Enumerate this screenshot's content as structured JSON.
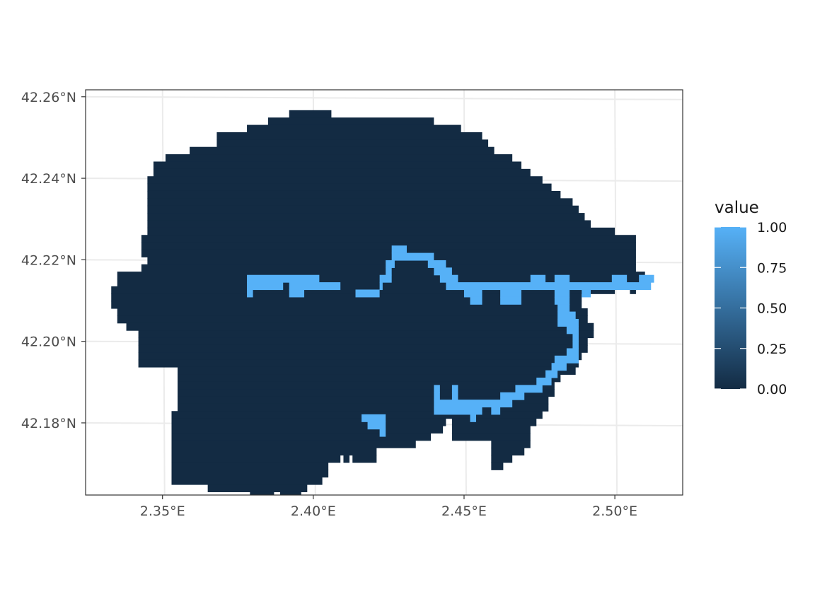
{
  "chart_data": {
    "type": "heatmap",
    "subtype": "raster-map",
    "x_ticks": [
      "2.35°E",
      "2.40°E",
      "2.45°E",
      "2.50°E"
    ],
    "y_ticks": [
      "42.26°N",
      "42.24°N",
      "42.22°N",
      "42.20°N",
      "42.18°N"
    ],
    "x_tick_values": [
      2.35,
      2.4,
      2.45,
      2.5
    ],
    "y_tick_values": [
      42.26,
      42.24,
      42.22,
      42.2,
      42.18
    ],
    "xlim": [
      2.3245,
      2.5225
    ],
    "ylim": [
      42.1623,
      42.2617
    ],
    "grid": true,
    "legend": {
      "title": "value",
      "position": "right",
      "scale": "continuous",
      "ticks": [
        "1.00",
        "0.75",
        "0.50",
        "0.25",
        "0.00"
      ],
      "tick_values": [
        1.0,
        0.75,
        0.5,
        0.25,
        0.0
      ],
      "low_color": "#132B43",
      "high_color": "#56B1F7"
    },
    "background_value": 0.0,
    "foreground_value": 1.0,
    "cell_size_deg": [
      0.0024,
      0.0018
    ],
    "area_rows": [
      {
        "y": 42.2558,
        "x_ranges": [
          [
            2.392,
            2.406
          ]
        ]
      },
      {
        "y": 42.254,
        "x_ranges": [
          [
            2.385,
            2.44
          ]
        ]
      },
      {
        "y": 42.2522,
        "x_ranges": [
          [
            2.378,
            2.449
          ]
        ]
      },
      {
        "y": 42.2504,
        "x_ranges": [
          [
            2.368,
            2.456
          ]
        ]
      },
      {
        "y": 42.2486,
        "x_ranges": [
          [
            2.368,
            2.458
          ]
        ]
      },
      {
        "y": 42.2468,
        "x_ranges": [
          [
            2.359,
            2.46
          ]
        ]
      },
      {
        "y": 42.245,
        "x_ranges": [
          [
            2.351,
            2.466
          ]
        ]
      },
      {
        "y": 42.2432,
        "x_ranges": [
          [
            2.347,
            2.469
          ]
        ]
      },
      {
        "y": 42.2414,
        "x_ranges": [
          [
            2.347,
            2.472
          ]
        ]
      },
      {
        "y": 42.2396,
        "x_ranges": [
          [
            2.345,
            2.476
          ]
        ]
      },
      {
        "y": 42.2378,
        "x_ranges": [
          [
            2.345,
            2.479
          ]
        ]
      },
      {
        "y": 42.236,
        "x_ranges": [
          [
            2.345,
            2.482
          ]
        ]
      },
      {
        "y": 42.2342,
        "x_ranges": [
          [
            2.345,
            2.486
          ]
        ]
      },
      {
        "y": 42.2324,
        "x_ranges": [
          [
            2.345,
            2.488
          ]
        ]
      },
      {
        "y": 42.2306,
        "x_ranges": [
          [
            2.345,
            2.49
          ]
        ]
      },
      {
        "y": 42.2288,
        "x_ranges": [
          [
            2.345,
            2.492
          ]
        ]
      },
      {
        "y": 42.227,
        "x_ranges": [
          [
            2.345,
            2.5
          ]
        ]
      },
      {
        "y": 42.2252,
        "x_ranges": [
          [
            2.343,
            2.507
          ]
        ]
      },
      {
        "y": 42.2234,
        "x_ranges": [
          [
            2.343,
            2.507
          ]
        ]
      },
      {
        "y": 42.2216,
        "x_ranges": [
          [
            2.343,
            2.507
          ]
        ]
      },
      {
        "y": 42.2198,
        "x_ranges": [
          [
            2.345,
            2.507
          ]
        ]
      },
      {
        "y": 42.218,
        "x_ranges": [
          [
            2.343,
            2.507
          ]
        ]
      },
      {
        "y": 42.2162,
        "x_ranges": [
          [
            2.335,
            2.51
          ]
        ]
      },
      {
        "y": 42.2144,
        "x_ranges": [
          [
            2.335,
            2.511
          ]
        ]
      },
      {
        "y": 42.2126,
        "x_ranges": [
          [
            2.333,
            2.5
          ],
          [
            2.505,
            2.507
          ]
        ]
      },
      {
        "y": 42.2108,
        "x_ranges": [
          [
            2.333,
            2.489
          ]
        ]
      },
      {
        "y": 42.209,
        "x_ranges": [
          [
            2.333,
            2.489
          ]
        ]
      },
      {
        "y": 42.2072,
        "x_ranges": [
          [
            2.335,
            2.491
          ]
        ]
      },
      {
        "y": 42.2054,
        "x_ranges": [
          [
            2.335,
            2.491
          ]
        ]
      },
      {
        "y": 42.2036,
        "x_ranges": [
          [
            2.338,
            2.493
          ]
        ]
      },
      {
        "y": 42.2018,
        "x_ranges": [
          [
            2.342,
            2.493
          ]
        ]
      },
      {
        "y": 42.2,
        "x_ranges": [
          [
            2.342,
            2.491
          ]
        ]
      },
      {
        "y": 42.1982,
        "x_ranges": [
          [
            2.342,
            2.491
          ]
        ]
      },
      {
        "y": 42.1964,
        "x_ranges": [
          [
            2.342,
            2.489
          ]
        ]
      },
      {
        "y": 42.1946,
        "x_ranges": [
          [
            2.342,
            2.488
          ]
        ]
      },
      {
        "y": 42.1928,
        "x_ranges": [
          [
            2.355,
            2.487
          ]
        ]
      },
      {
        "y": 42.191,
        "x_ranges": [
          [
            2.355,
            2.482
          ]
        ]
      },
      {
        "y": 42.1892,
        "x_ranges": [
          [
            2.355,
            2.48
          ]
        ]
      },
      {
        "y": 42.1874,
        "x_ranges": [
          [
            2.355,
            2.48
          ]
        ]
      },
      {
        "y": 42.1856,
        "x_ranges": [
          [
            2.355,
            2.478
          ]
        ]
      },
      {
        "y": 42.1838,
        "x_ranges": [
          [
            2.355,
            2.478
          ]
        ]
      },
      {
        "y": 42.182,
        "x_ranges": [
          [
            2.353,
            2.476
          ]
        ]
      },
      {
        "y": 42.1802,
        "x_ranges": [
          [
            2.353,
            2.444
          ],
          [
            2.446,
            2.474
          ]
        ]
      },
      {
        "y": 42.1784,
        "x_ranges": [
          [
            2.353,
            2.443
          ],
          [
            2.446,
            2.472
          ]
        ]
      },
      {
        "y": 42.1766,
        "x_ranges": [
          [
            2.353,
            2.439
          ],
          [
            2.446,
            2.472
          ]
        ]
      },
      {
        "y": 42.1748,
        "x_ranges": [
          [
            2.353,
            2.434
          ],
          [
            2.459,
            2.472
          ]
        ]
      },
      {
        "y": 42.173,
        "x_ranges": [
          [
            2.353,
            2.421
          ],
          [
            2.459,
            2.47
          ]
        ]
      },
      {
        "y": 42.1712,
        "x_ranges": [
          [
            2.353,
            2.409
          ],
          [
            2.41,
            2.412
          ],
          [
            2.413,
            2.421
          ],
          [
            2.459,
            2.466
          ]
        ]
      },
      {
        "y": 42.1694,
        "x_ranges": [
          [
            2.353,
            2.405
          ],
          [
            2.459,
            2.463
          ]
        ]
      },
      {
        "y": 42.1676,
        "x_ranges": [
          [
            2.353,
            2.405
          ]
        ]
      },
      {
        "y": 42.1658,
        "x_ranges": [
          [
            2.353,
            2.403
          ]
        ]
      },
      {
        "y": 42.164,
        "x_ranges": [
          [
            2.365,
            2.398
          ]
        ]
      },
      {
        "y": 42.1622,
        "x_ranges": [
          [
            2.379,
            2.387
          ],
          [
            2.389,
            2.396
          ]
        ]
      },
      {
        "y": 42.1604,
        "x_ranges": [
          [
            2.382,
            2.385
          ]
        ]
      }
    ],
    "line_rows": [
      {
        "y": 42.2226,
        "x_ranges": [
          [
            2.426,
            2.431
          ]
        ]
      },
      {
        "y": 42.2208,
        "x_ranges": [
          [
            2.426,
            2.44
          ]
        ]
      },
      {
        "y": 42.219,
        "x_ranges": [
          [
            2.424,
            2.427
          ],
          [
            2.438,
            2.444
          ]
        ]
      },
      {
        "y": 42.2172,
        "x_ranges": [
          [
            2.424,
            2.426
          ],
          [
            2.44,
            2.446
          ]
        ]
      },
      {
        "y": 42.2154,
        "x_ranges": [
          [
            2.378,
            2.402
          ],
          [
            2.422,
            2.426
          ],
          [
            2.442,
            2.448
          ],
          [
            2.472,
            2.477
          ],
          [
            2.48,
            2.485
          ],
          [
            2.499,
            2.504
          ],
          [
            2.508,
            2.513
          ]
        ]
      },
      {
        "y": 42.2136,
        "x_ranges": [
          [
            2.378,
            2.39
          ],
          [
            2.392,
            2.409
          ],
          [
            2.422,
            2.423
          ],
          [
            2.444,
            2.512
          ]
        ]
      },
      {
        "y": 42.2118,
        "x_ranges": [
          [
            2.378,
            2.38
          ],
          [
            2.392,
            2.397
          ],
          [
            2.414,
            2.422
          ],
          [
            2.45,
            2.456
          ],
          [
            2.462,
            2.469
          ],
          [
            2.48,
            2.485
          ],
          [
            2.489,
            2.492
          ]
        ]
      },
      {
        "y": 42.21,
        "x_ranges": [
          [
            2.452,
            2.456
          ],
          [
            2.462,
            2.469
          ],
          [
            2.48,
            2.485
          ]
        ]
      },
      {
        "y": 42.2082,
        "x_ranges": [
          [
            2.481,
            2.485
          ]
        ]
      },
      {
        "y": 42.2064,
        "x_ranges": [
          [
            2.481,
            2.487
          ]
        ]
      },
      {
        "y": 42.2046,
        "x_ranges": [
          [
            2.481,
            2.488
          ]
        ]
      },
      {
        "y": 42.2028,
        "x_ranges": [
          [
            2.484,
            2.488
          ]
        ]
      },
      {
        "y": 42.201,
        "x_ranges": [
          [
            2.486,
            2.488
          ]
        ]
      },
      {
        "y": 42.1992,
        "x_ranges": [
          [
            2.486,
            2.488
          ]
        ]
      },
      {
        "y": 42.1974,
        "x_ranges": [
          [
            2.484,
            2.488
          ]
        ]
      },
      {
        "y": 42.1956,
        "x_ranges": [
          [
            2.48,
            2.488
          ]
        ]
      },
      {
        "y": 42.1938,
        "x_ranges": [
          [
            2.479,
            2.484
          ]
        ]
      },
      {
        "y": 42.192,
        "x_ranges": [
          [
            2.477,
            2.481
          ]
        ]
      },
      {
        "y": 42.1902,
        "x_ranges": [
          [
            2.474,
            2.479
          ]
        ]
      },
      {
        "y": 42.1884,
        "x_ranges": [
          [
            2.44,
            2.442
          ],
          [
            2.446,
            2.448
          ],
          [
            2.467,
            2.476
          ]
        ]
      },
      {
        "y": 42.1866,
        "x_ranges": [
          [
            2.44,
            2.442
          ],
          [
            2.446,
            2.448
          ],
          [
            2.462,
            2.47
          ]
        ]
      },
      {
        "y": 42.1848,
        "x_ranges": [
          [
            2.44,
            2.466
          ]
        ]
      },
      {
        "y": 42.183,
        "x_ranges": [
          [
            2.44,
            2.456
          ],
          [
            2.459,
            2.462
          ]
        ]
      },
      {
        "y": 42.1812,
        "x_ranges": [
          [
            2.416,
            2.424
          ],
          [
            2.452,
            2.454
          ]
        ]
      },
      {
        "y": 42.1794,
        "x_ranges": [
          [
            2.418,
            2.424
          ]
        ]
      },
      {
        "y": 42.1776,
        "x_ranges": [
          [
            2.422,
            2.424
          ]
        ]
      }
    ]
  }
}
